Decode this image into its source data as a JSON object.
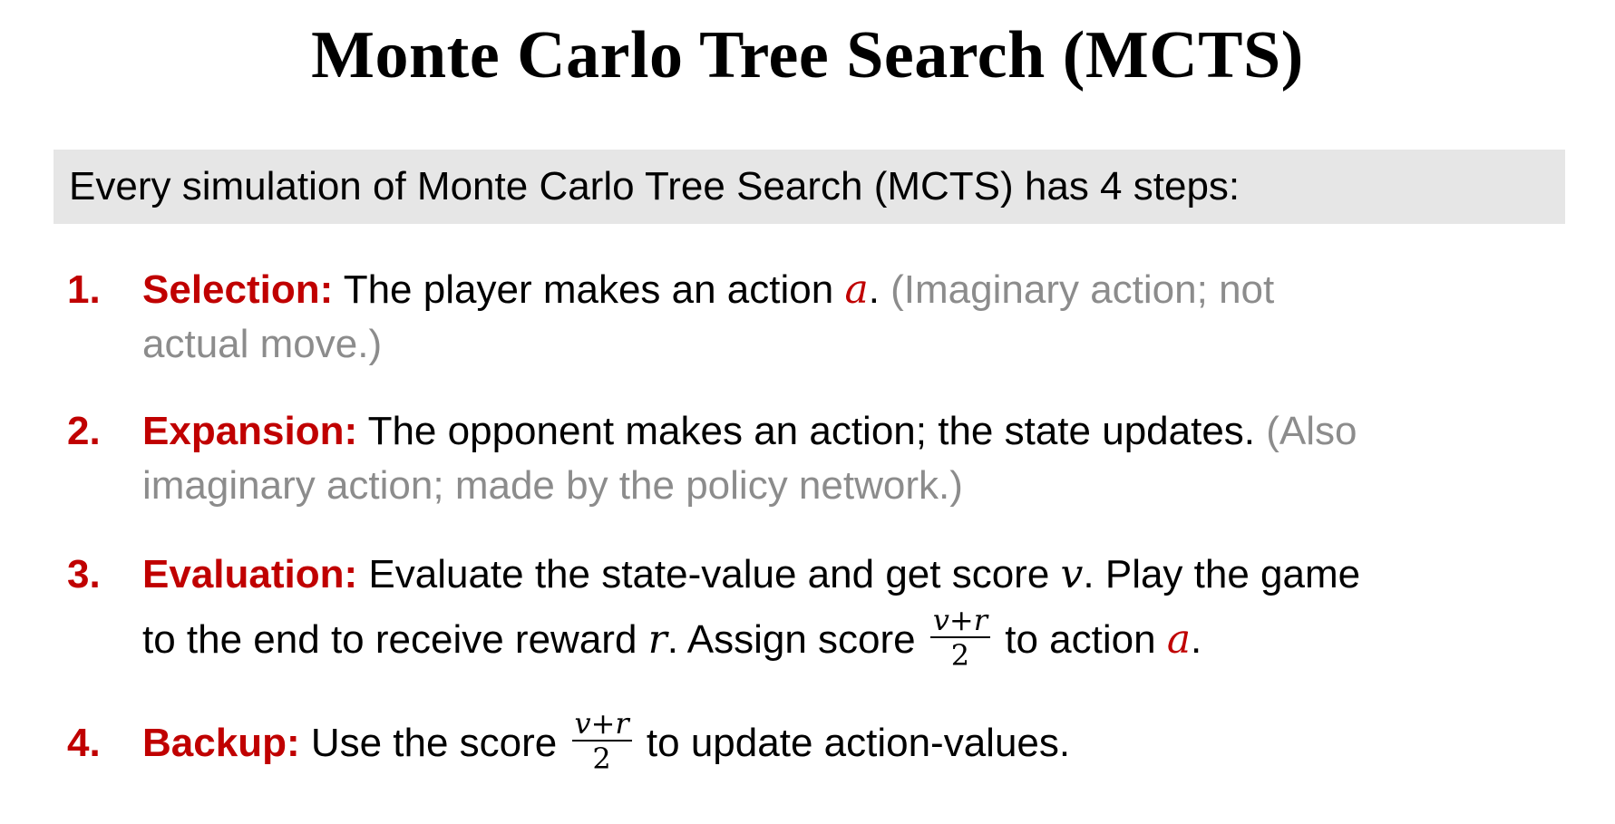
{
  "title": "Monte Carlo Tree Search (MCTS)",
  "intro": "Every simulation of Monte Carlo Tree Search (MCTS) has 4 steps:",
  "steps": [
    {
      "number": "1.",
      "keyword": "Selection:",
      "line1_text": " The player makes an action ",
      "line1_var": "a",
      "line1_end": ". ",
      "line1_note": "(Imaginary action; not",
      "line2_note": "actual move.)"
    },
    {
      "number": "2.",
      "keyword": "Expansion:",
      "line1_text": " The opponent makes an action; the state updates. ",
      "line1_note": "(Also",
      "line2_note": "imaginary action; made by the policy network.)"
    },
    {
      "number": "3.",
      "keyword": "Evaluation:",
      "line1_text": " Evaluate the state-value and get score ",
      "line1_var": "v",
      "line1_end": ". Play the game",
      "line2_text": "to the end to receive reward ",
      "line2_var": "r",
      "line2_mid": ". Assign score ",
      "frac_num": "v+r",
      "frac_den": "2",
      "line2_after": " to action ",
      "line2_var2": "a",
      "line2_end": "."
    },
    {
      "number": "4.",
      "keyword": "Backup:",
      "line1_text": " Use the score ",
      "frac_num": "v+r",
      "frac_den": "2",
      "line1_end": " to update action-values."
    }
  ]
}
